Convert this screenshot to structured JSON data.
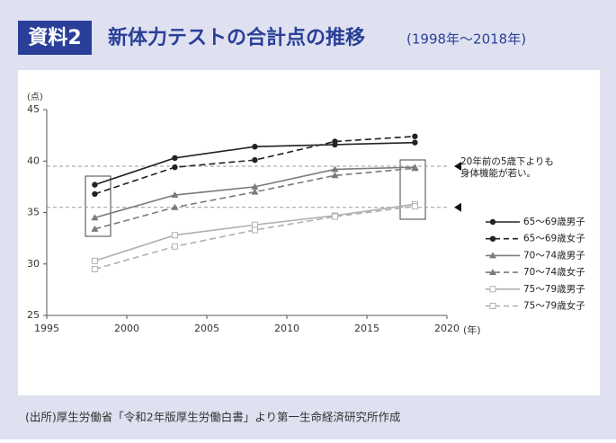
{
  "header": {
    "badge": "資料2",
    "title": "新体力テストの合計点の推移",
    "subtitle": "(1998年〜2018年)"
  },
  "chart_data": {
    "type": "line",
    "y_label": "(点)",
    "x_label": "(年)",
    "x": [
      1998,
      2003,
      2008,
      2013,
      2018
    ],
    "xlim": [
      1995,
      2020
    ],
    "xticks": [
      1995,
      2000,
      2005,
      2010,
      2015,
      2020
    ],
    "ylim": [
      25,
      45
    ],
    "yticks": [
      25,
      30,
      35,
      40,
      45
    ],
    "series": [
      {
        "name": "65〜69歳男子",
        "color": "#222222",
        "marker": "circle",
        "dash": false,
        "values": [
          37.7,
          40.3,
          41.4,
          41.6,
          41.8
        ]
      },
      {
        "name": "65〜69歳女子",
        "color": "#222222",
        "marker": "circle",
        "dash": true,
        "values": [
          36.8,
          39.4,
          40.1,
          41.9,
          42.4
        ]
      },
      {
        "name": "70〜74歳男子",
        "color": "#7a7a7a",
        "marker": "triangle",
        "dash": false,
        "values": [
          34.5,
          36.7,
          37.5,
          39.2,
          39.4
        ]
      },
      {
        "name": "70〜74歳女子",
        "color": "#7a7a7a",
        "marker": "triangle",
        "dash": true,
        "values": [
          33.4,
          35.5,
          37.0,
          38.6,
          39.3
        ]
      },
      {
        "name": "75〜79歳男子",
        "color": "#b0b0b0",
        "marker": "square",
        "dash": false,
        "values": [
          30.3,
          32.8,
          33.8,
          34.7,
          35.8
        ]
      },
      {
        "name": "75〜79歳女子",
        "color": "#b0b0b0",
        "marker": "square",
        "dash": true,
        "values": [
          29.5,
          31.7,
          33.3,
          34.6,
          35.6
        ]
      }
    ],
    "reference_lines": [
      39.5,
      35.5
    ],
    "annotation": [
      "20年前の5歳下よりも",
      "身体機能が若い。"
    ]
  },
  "source": "(出所)厚生労働省「令和2年版厚生労働白書」より第一生命経済研究所作成"
}
